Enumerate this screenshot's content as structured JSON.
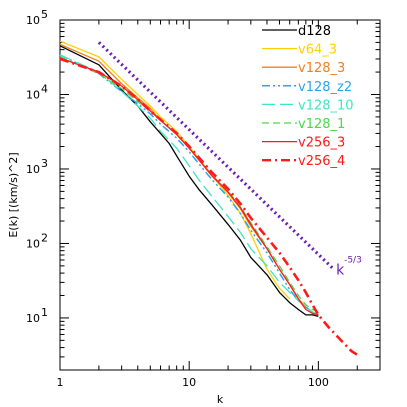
{
  "chart_data": {
    "type": "line",
    "xlabel": "k",
    "ylabel": "E(k) [(km/s)^2]",
    "xscale": "log",
    "yscale": "log",
    "xlim": [
      1,
      300
    ],
    "ylim": [
      2,
      100000
    ],
    "x_ticks": [
      {
        "value": 1,
        "base": "1",
        "exp": ""
      },
      {
        "value": 10,
        "base": "10",
        "exp": ""
      },
      {
        "value": 100,
        "base": "100",
        "exp": ""
      }
    ],
    "y_ticks": [
      {
        "value": 10,
        "base": "10",
        "exp": "1"
      },
      {
        "value": 100,
        "base": "10",
        "exp": "2"
      },
      {
        "value": 1000,
        "base": "10",
        "exp": "3"
      },
      {
        "value": 10000,
        "base": "10",
        "exp": "4"
      },
      {
        "value": 100000,
        "base": "10",
        "exp": "5"
      }
    ],
    "legend_position": "top-right",
    "series": [
      {
        "name": "d128",
        "color": "#000000",
        "dash": "solid",
        "width": 1.3,
        "points": [
          [
            1,
            45000
          ],
          [
            2,
            25000
          ],
          [
            3,
            11500
          ],
          [
            4,
            7000
          ],
          [
            5,
            4300
          ],
          [
            6,
            3000
          ],
          [
            7,
            2200
          ],
          [
            8,
            1500
          ],
          [
            10,
            800
          ],
          [
            12,
            520
          ],
          [
            15,
            330
          ],
          [
            20,
            180
          ],
          [
            25,
            110
          ],
          [
            30,
            65
          ],
          [
            40,
            38
          ],
          [
            50,
            22
          ],
          [
            60,
            16
          ],
          [
            70,
            13
          ],
          [
            80,
            11
          ],
          [
            90,
            11
          ],
          [
            100,
            10.5
          ]
        ]
      },
      {
        "name": "v64_3",
        "color": "#ffd000",
        "dash": "solid",
        "width": 1.3,
        "points": [
          [
            1,
            52000
          ],
          [
            2,
            32000
          ],
          [
            3,
            16000
          ],
          [
            4,
            10000
          ],
          [
            5,
            7000
          ],
          [
            6,
            5000
          ],
          [
            8,
            3200
          ],
          [
            10,
            2000
          ],
          [
            12,
            1350
          ],
          [
            15,
            820
          ],
          [
            20,
            440
          ],
          [
            25,
            250
          ],
          [
            30,
            135
          ],
          [
            35,
            75
          ],
          [
            40,
            45
          ],
          [
            50,
            25
          ],
          [
            60,
            18
          ]
        ]
      },
      {
        "name": "v128_3",
        "color": "#f08020",
        "dash": "solid",
        "width": 1.3,
        "points": [
          [
            1,
            47000
          ],
          [
            2,
            28000
          ],
          [
            3,
            14000
          ],
          [
            4,
            9000
          ],
          [
            5,
            6500
          ],
          [
            6,
            4500
          ],
          [
            8,
            2900
          ],
          [
            10,
            1900
          ],
          [
            12,
            1300
          ],
          [
            15,
            800
          ],
          [
            20,
            480
          ],
          [
            25,
            290
          ],
          [
            30,
            170
          ],
          [
            40,
            85
          ],
          [
            50,
            45
          ],
          [
            60,
            28
          ],
          [
            70,
            18
          ],
          [
            80,
            14
          ],
          [
            90,
            12
          ],
          [
            100,
            11
          ]
        ]
      },
      {
        "name": "v128_z2",
        "color": "#2aa6e8",
        "dash": "dashdotdot",
        "width": 1.5,
        "points": [
          [
            1,
            34000
          ],
          [
            2,
            19000
          ],
          [
            3,
            11000
          ],
          [
            4,
            7500
          ],
          [
            5,
            5500
          ],
          [
            6,
            4000
          ],
          [
            8,
            2600
          ],
          [
            10,
            1700
          ],
          [
            12,
            1150
          ],
          [
            15,
            720
          ],
          [
            20,
            420
          ],
          [
            25,
            250
          ],
          [
            30,
            150
          ],
          [
            40,
            75
          ],
          [
            50,
            40
          ],
          [
            60,
            24
          ],
          [
            70,
            17
          ],
          [
            80,
            14
          ],
          [
            90,
            12
          ],
          [
            100,
            10.5
          ]
        ]
      },
      {
        "name": "v128_10",
        "color": "#3ee6c0",
        "dash": "longdash",
        "width": 1.3,
        "points": [
          [
            1,
            34000
          ],
          [
            2,
            20000
          ],
          [
            3,
            11000
          ],
          [
            4,
            7000
          ],
          [
            5,
            4800
          ],
          [
            6,
            3200
          ],
          [
            8,
            1900
          ],
          [
            10,
            1100
          ],
          [
            12,
            700
          ],
          [
            15,
            430
          ],
          [
            20,
            230
          ],
          [
            25,
            140
          ],
          [
            30,
            85
          ],
          [
            40,
            50
          ],
          [
            50,
            30
          ],
          [
            60,
            22
          ],
          [
            70,
            17
          ],
          [
            80,
            14
          ],
          [
            90,
            12
          ],
          [
            100,
            11
          ]
        ]
      },
      {
        "name": "v128_1",
        "color": "#4cd84c",
        "dash": "dash",
        "width": 1.3,
        "points": [
          [
            1,
            32000
          ],
          [
            2,
            19000
          ],
          [
            3,
            12000
          ],
          [
            4,
            8000
          ],
          [
            5,
            6000
          ],
          [
            6,
            4500
          ],
          [
            8,
            2900
          ],
          [
            10,
            1900
          ],
          [
            12,
            1300
          ],
          [
            15,
            830
          ],
          [
            20,
            500
          ],
          [
            25,
            310
          ],
          [
            30,
            190
          ],
          [
            40,
            90
          ],
          [
            50,
            50
          ],
          [
            60,
            30
          ],
          [
            70,
            20
          ],
          [
            80,
            15
          ],
          [
            90,
            13
          ],
          [
            100,
            12
          ]
        ]
      },
      {
        "name": "v256_3",
        "color": "#ff1a1a",
        "dash": "solid",
        "width": 1.3,
        "points": [
          [
            1,
            31000
          ],
          [
            2,
            20000
          ],
          [
            3,
            13000
          ],
          [
            4,
            8500
          ],
          [
            5,
            6000
          ],
          [
            6,
            4500
          ],
          [
            8,
            2900
          ],
          [
            10,
            1900
          ],
          [
            12,
            1300
          ],
          [
            15,
            820
          ],
          [
            20,
            490
          ],
          [
            25,
            300
          ],
          [
            30,
            180
          ],
          [
            40,
            85
          ],
          [
            50,
            45
          ],
          [
            60,
            28
          ],
          [
            70,
            18
          ],
          [
            80,
            13
          ],
          [
            90,
            11.5
          ],
          [
            100,
            11
          ]
        ]
      },
      {
        "name": "v256_4",
        "color": "#ff1a1a",
        "dash": "dashdot",
        "width": 2.6,
        "points": [
          [
            1,
            30000
          ],
          [
            2,
            20000
          ],
          [
            3,
            13000
          ],
          [
            4,
            8600
          ],
          [
            5,
            6000
          ],
          [
            6,
            4600
          ],
          [
            8,
            3000
          ],
          [
            10,
            2000
          ],
          [
            12,
            1400
          ],
          [
            15,
            900
          ],
          [
            20,
            540
          ],
          [
            25,
            340
          ],
          [
            30,
            220
          ],
          [
            40,
            120
          ],
          [
            50,
            75
          ],
          [
            60,
            48
          ],
          [
            70,
            32
          ],
          [
            80,
            22
          ],
          [
            90,
            15
          ],
          [
            100,
            11
          ],
          [
            120,
            7.5
          ],
          [
            150,
            5
          ],
          [
            180,
            3.6
          ],
          [
            200,
            3.2
          ]
        ]
      },
      {
        "name": "",
        "color": "#6a1fb5",
        "dash": "dotted",
        "width": 3.2,
        "points": [
          [
            2,
            50000
          ],
          [
            130,
            46
          ]
        ]
      }
    ],
    "annotation": {
      "base": "k",
      "exp": "-5/3",
      "color": "#6a1fb5"
    }
  }
}
